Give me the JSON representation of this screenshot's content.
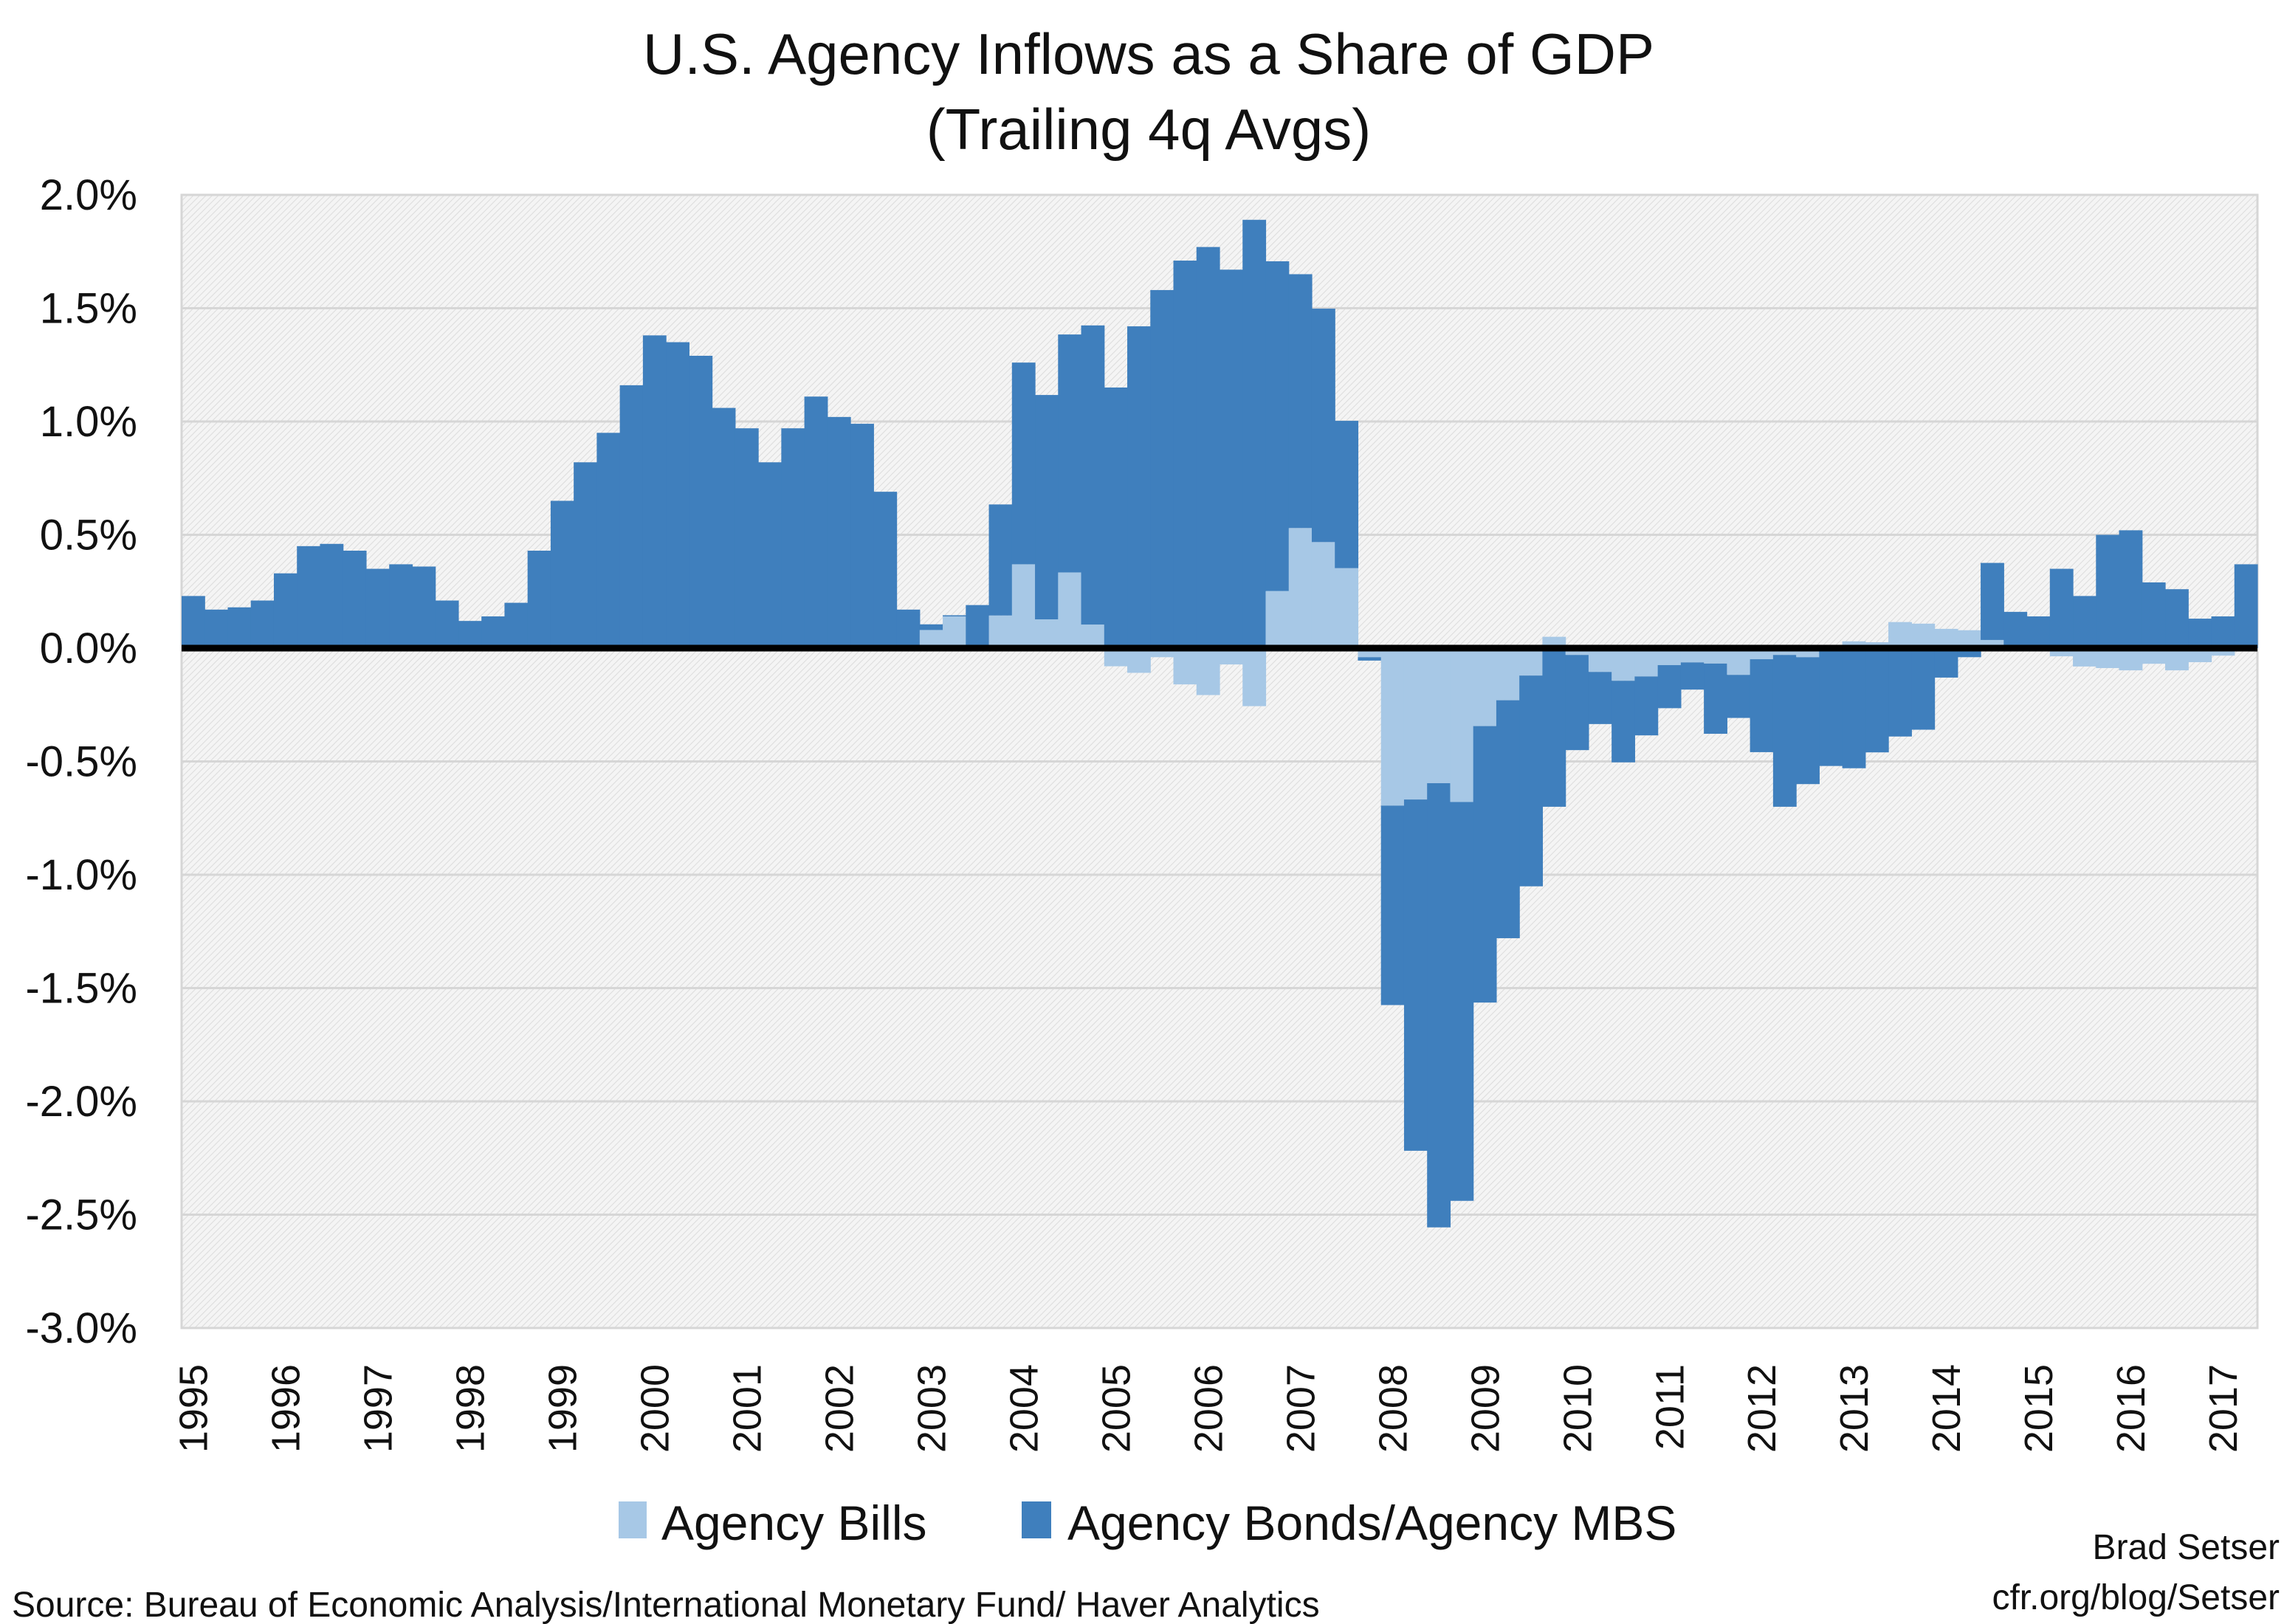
{
  "chart_data": {
    "type": "bar",
    "stacked": true,
    "title": "U.S. Agency Inflows as a Share of GDP",
    "subtitle": "(Trailing 4q Avgs)",
    "xlabel": "",
    "ylabel": "",
    "ylim": [
      -3.0,
      2.0
    ],
    "y_ticks": [
      "2.0%",
      "1.5%",
      "1.0%",
      "0.5%",
      "0.0%",
      "-0.5%",
      "-1.0%",
      "-1.5%",
      "-2.0%",
      "-2.5%",
      "-3.0%"
    ],
    "y_tick_values": [
      2.0,
      1.5,
      1.0,
      0.5,
      0.0,
      -0.5,
      -1.0,
      -1.5,
      -2.0,
      -2.5,
      -3.0
    ],
    "x_tick_labels": [
      "1995",
      "1996",
      "1997",
      "1998",
      "1999",
      "2000",
      "2001",
      "2002",
      "2003",
      "2004",
      "2005",
      "2006",
      "2007",
      "2008",
      "2009",
      "2010",
      "2011",
      "2012",
      "2013",
      "2014",
      "2015",
      "2016",
      "2017"
    ],
    "grid": true,
    "legend_position": "bottom",
    "categories": [
      "1995Q1",
      "1995Q2",
      "1995Q3",
      "1995Q4",
      "1996Q1",
      "1996Q2",
      "1996Q3",
      "1996Q4",
      "1997Q1",
      "1997Q2",
      "1997Q3",
      "1997Q4",
      "1998Q1",
      "1998Q2",
      "1998Q3",
      "1998Q4",
      "1999Q1",
      "1999Q2",
      "1999Q3",
      "1999Q4",
      "2000Q1",
      "2000Q2",
      "2000Q3",
      "2000Q4",
      "2001Q1",
      "2001Q2",
      "2001Q3",
      "2001Q4",
      "2002Q1",
      "2002Q2",
      "2002Q3",
      "2002Q4",
      "2003Q1",
      "2003Q2",
      "2003Q3",
      "2003Q4",
      "2004Q1",
      "2004Q2",
      "2004Q3",
      "2004Q4",
      "2005Q1",
      "2005Q2",
      "2005Q3",
      "2005Q4",
      "2006Q1",
      "2006Q2",
      "2006Q3",
      "2006Q4",
      "2007Q1",
      "2007Q2",
      "2007Q3",
      "2007Q4",
      "2008Q1",
      "2008Q2",
      "2008Q3",
      "2008Q4",
      "2009Q1",
      "2009Q2",
      "2009Q3",
      "2009Q4",
      "2010Q1",
      "2010Q2",
      "2010Q3",
      "2010Q4",
      "2011Q1",
      "2011Q2",
      "2011Q3",
      "2011Q4",
      "2012Q1",
      "2012Q2",
      "2012Q3",
      "2012Q4",
      "2013Q1",
      "2013Q2",
      "2013Q3",
      "2013Q4",
      "2014Q1",
      "2014Q2",
      "2014Q3",
      "2014Q4",
      "2015Q1",
      "2015Q2",
      "2015Q3",
      "2015Q4",
      "2016Q1",
      "2016Q2",
      "2016Q3",
      "2016Q4",
      "2017Q1",
      "2017Q2"
    ],
    "series": [
      {
        "name": "Agency Bills",
        "color": "#a7c8e6",
        "values": [
          0,
          0,
          0,
          0,
          0,
          0,
          0,
          0,
          0,
          0,
          0,
          0,
          0,
          0,
          0,
          0,
          0,
          0,
          0,
          0,
          0,
          0,
          0,
          0,
          0,
          0,
          0,
          0,
          0,
          0,
          0,
          0,
          0.08,
          0.14,
          0,
          0.144,
          0.37,
          0.127,
          0.334,
          0.104,
          -0.08,
          -0.109,
          -0.04,
          -0.16,
          -0.207,
          -0.072,
          -0.256,
          0.252,
          0.53,
          0.468,
          0.353,
          -0.04,
          -0.695,
          -0.668,
          -0.596,
          -0.679,
          -0.344,
          -0.23,
          -0.121,
          0.05,
          -0.03,
          -0.105,
          -0.144,
          -0.125,
          -0.075,
          -0.063,
          -0.068,
          -0.118,
          -0.049,
          -0.03,
          -0.04,
          -0.01,
          0.03,
          0.026,
          0.115,
          0.108,
          0.085,
          0.079,
          0.036,
          0,
          0,
          -0.036,
          -0.081,
          -0.088,
          -0.098,
          -0.069,
          -0.098,
          -0.062,
          -0.033,
          0
        ]
      },
      {
        "name": "Agency Bonds/Agency MBS",
        "color": "#3f7fbd",
        "values": [
          0.23,
          0.17,
          0.18,
          0.21,
          0.33,
          0.45,
          0.46,
          0.43,
          0.35,
          0.37,
          0.36,
          0.21,
          0.12,
          0.14,
          0.2,
          0.43,
          0.65,
          0.82,
          0.95,
          1.16,
          1.38,
          1.35,
          1.29,
          1.06,
          0.97,
          0.82,
          0.97,
          1.11,
          1.02,
          0.99,
          0.69,
          0.17,
          0.025,
          0.005,
          0.19,
          0.49,
          0.89,
          0.99,
          1.05,
          1.32,
          1.15,
          1.42,
          1.58,
          1.71,
          1.77,
          1.67,
          1.89,
          1.455,
          1.12,
          1.03,
          0.65,
          -0.015,
          -0.88,
          -1.55,
          -1.96,
          -1.76,
          -1.22,
          -1.05,
          -0.93,
          -0.7,
          -0.42,
          -0.23,
          -0.36,
          -0.26,
          -0.19,
          -0.12,
          -0.31,
          -0.19,
          -0.41,
          -0.67,
          -0.56,
          -0.51,
          -0.53,
          -0.46,
          -0.39,
          -0.36,
          -0.13,
          -0.04,
          0.34,
          0.16,
          0.14,
          0.35,
          0.23,
          0.5,
          0.52,
          0.29,
          0.26,
          0.13,
          0.14,
          0.37
        ]
      }
    ]
  },
  "legend": {
    "items": [
      {
        "label": "Agency Bills",
        "color": "#a7c8e6"
      },
      {
        "label": "Agency Bonds/Agency MBS",
        "color": "#3f7fbd"
      }
    ]
  },
  "footer": {
    "source": "Source: Bureau of Economic Analysis/International Monetary Fund/ Haver Analytics",
    "author": "Brad Setser",
    "site": "cfr.org/blog/Setser"
  }
}
